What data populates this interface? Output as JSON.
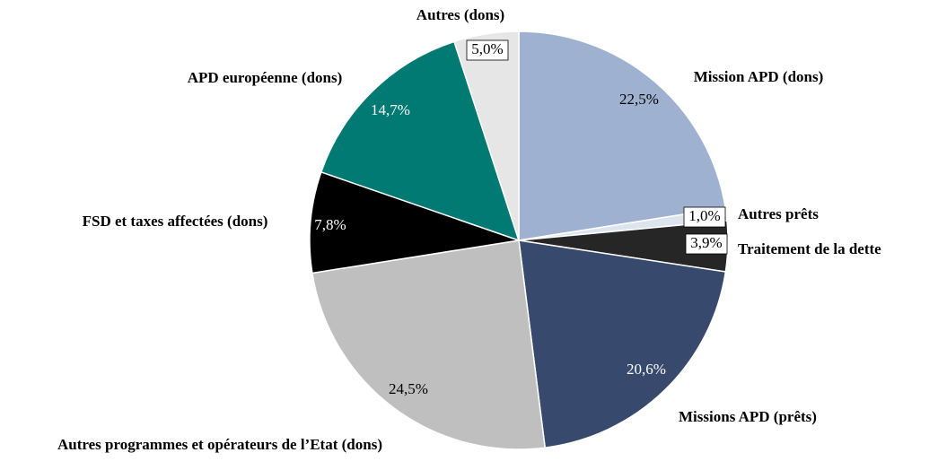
{
  "chart_data": {
    "type": "pie",
    "categories": [
      "Mission APD (dons)",
      "Autres prêts",
      "Traitement de la dette",
      "Missions APD (prêts)",
      "Autres programmes et opérateurs de l’Etat (dons)",
      "FSD et taxes affectées (dons)",
      "APD européenne (dons)",
      "Autres (dons)"
    ],
    "values": [
      22.5,
      1.0,
      3.9,
      20.6,
      24.5,
      7.8,
      14.7,
      5.0
    ],
    "value_labels": [
      "22,5%",
      "1,0%",
      "3,9%",
      "20,6%",
      "24,5%",
      "7,8%",
      "14,7%",
      "5,0%"
    ],
    "colors": [
      "#9fb1d0",
      "#dde4f0",
      "#262626",
      "#374a6d",
      "#bfbfbf",
      "#000000",
      "#007a73",
      "#e6e6e6"
    ]
  }
}
